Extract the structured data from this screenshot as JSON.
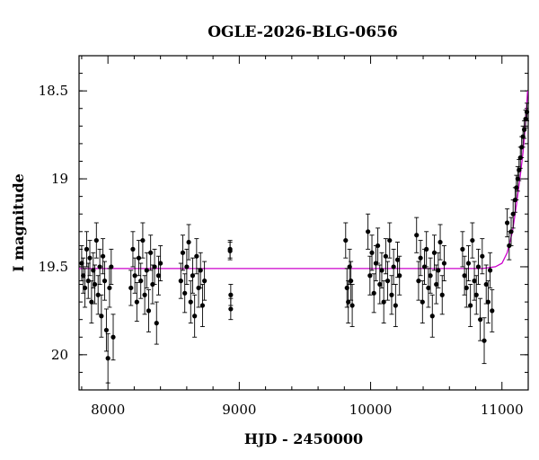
{
  "chart_data": {
    "type": "scatter",
    "title": "OGLE-2026-BLG-0656",
    "xlabel": "HJD - 2450000",
    "ylabel": "I magnitude",
    "xlim": [
      7780,
      11200
    ],
    "ylim": [
      20.2,
      18.3
    ],
    "y_inverted": true,
    "xticks": [
      8000,
      9000,
      10000,
      11000
    ],
    "yticks": [
      18.5,
      19,
      19.5,
      20
    ],
    "xtick_labels": [
      "8000",
      "9000",
      "10000",
      "11000"
    ],
    "ytick_labels": [
      "18.5",
      "19",
      "19.5",
      "20"
    ],
    "grid": false,
    "colors": {
      "points": "#000000",
      "model": "#cc00cc",
      "frame": "#000000"
    },
    "series": [
      {
        "kind": "observations_with_error_bars",
        "x": [
          7800,
          7812,
          7825,
          7838,
          7850,
          7862,
          7875,
          7888,
          7900,
          7912,
          7925,
          7938,
          7950,
          7962,
          7975,
          7988,
          8000,
          8012,
          8025,
          8040,
          8175,
          8190,
          8205,
          8220,
          8235,
          8250,
          8265,
          8280,
          8295,
          8310,
          8325,
          8340,
          8355,
          8370,
          8385,
          8400,
          8555,
          8570,
          8585,
          8600,
          8615,
          8630,
          8645,
          8660,
          8675,
          8690,
          8705,
          8720,
          8735,
          8930,
          8930,
          8935,
          8935,
          9810,
          9820,
          9830,
          9840,
          9850,
          9860,
          9980,
          9995,
          10010,
          10025,
          10040,
          10055,
          10070,
          10085,
          10100,
          10115,
          10130,
          10145,
          10160,
          10175,
          10190,
          10205,
          10220,
          10350,
          10365,
          10380,
          10395,
          10410,
          10425,
          10440,
          10455,
          10470,
          10485,
          10500,
          10515,
          10530,
          10545,
          10560,
          10700,
          10715,
          10730,
          10745,
          10760,
          10775,
          10790,
          10805,
          10820,
          10835,
          10850,
          10865,
          10880,
          10895,
          10910,
          10925,
          11040,
          11055,
          11070,
          11085,
          11100,
          11110,
          11120,
          11130,
          11140,
          11150,
          11160,
          11170,
          11180,
          11190
        ],
        "y": [
          19.48,
          19.55,
          19.62,
          19.4,
          19.58,
          19.45,
          19.7,
          19.52,
          19.6,
          19.35,
          19.66,
          19.5,
          19.78,
          19.44,
          19.58,
          19.86,
          20.02,
          19.62,
          19.5,
          19.9,
          19.62,
          19.4,
          19.55,
          19.7,
          19.45,
          19.58,
          19.35,
          19.66,
          19.52,
          19.75,
          19.42,
          19.6,
          19.5,
          19.82,
          19.55,
          19.48,
          19.58,
          19.42,
          19.65,
          19.5,
          19.36,
          19.7,
          19.55,
          19.78,
          19.44,
          19.62,
          19.52,
          19.72,
          19.58,
          19.4,
          19.41,
          19.66,
          19.74,
          19.35,
          19.62,
          19.7,
          19.5,
          19.58,
          19.72,
          19.3,
          19.55,
          19.42,
          19.65,
          19.48,
          19.38,
          19.6,
          19.52,
          19.7,
          19.44,
          19.58,
          19.35,
          19.66,
          19.5,
          19.72,
          19.46,
          19.55,
          19.32,
          19.58,
          19.45,
          19.7,
          19.5,
          19.4,
          19.62,
          19.55,
          19.78,
          19.42,
          19.6,
          19.52,
          19.36,
          19.66,
          19.48,
          19.4,
          19.55,
          19.62,
          19.48,
          19.72,
          19.35,
          19.58,
          19.66,
          19.5,
          19.8,
          19.44,
          19.92,
          19.6,
          19.7,
          19.52,
          19.75,
          19.25,
          19.38,
          19.3,
          19.2,
          19.12,
          19.05,
          19.0,
          18.95,
          18.88,
          18.82,
          18.76,
          18.72,
          18.66,
          18.62
        ],
        "yerr": [
          0.1,
          0.1,
          0.11,
          0.1,
          0.1,
          0.1,
          0.12,
          0.1,
          0.11,
          0.1,
          0.11,
          0.1,
          0.12,
          0.1,
          0.11,
          0.12,
          0.14,
          0.11,
          0.1,
          0.13,
          0.1,
          0.1,
          0.1,
          0.11,
          0.1,
          0.1,
          0.1,
          0.11,
          0.1,
          0.12,
          0.1,
          0.11,
          0.1,
          0.12,
          0.11,
          0.1,
          0.1,
          0.1,
          0.11,
          0.1,
          0.1,
          0.12,
          0.1,
          0.12,
          0.1,
          0.11,
          0.1,
          0.12,
          0.11,
          0.05,
          0.05,
          0.06,
          0.06,
          0.1,
          0.11,
          0.12,
          0.1,
          0.11,
          0.12,
          0.1,
          0.11,
          0.1,
          0.11,
          0.1,
          0.1,
          0.11,
          0.1,
          0.12,
          0.1,
          0.11,
          0.1,
          0.11,
          0.1,
          0.12,
          0.1,
          0.11,
          0.1,
          0.11,
          0.1,
          0.12,
          0.1,
          0.1,
          0.11,
          0.1,
          0.12,
          0.1,
          0.11,
          0.1,
          0.1,
          0.11,
          0.1,
          0.1,
          0.11,
          0.11,
          0.1,
          0.12,
          0.1,
          0.11,
          0.11,
          0.1,
          0.12,
          0.1,
          0.13,
          0.11,
          0.12,
          0.1,
          0.12,
          0.08,
          0.08,
          0.08,
          0.08,
          0.07,
          0.07,
          0.07,
          0.06,
          0.06,
          0.06,
          0.06,
          0.05,
          0.05,
          0.05
        ]
      },
      {
        "kind": "model_curve",
        "x": [
          7780,
          9000,
          10000,
          10700,
          10850,
          10950,
          11000,
          11040,
          11080,
          11110,
          11140,
          11160,
          11180,
          11195
        ],
        "y": [
          19.51,
          19.51,
          19.51,
          19.51,
          19.51,
          19.5,
          19.48,
          19.42,
          19.3,
          19.15,
          18.98,
          18.85,
          18.68,
          18.5
        ]
      }
    ]
  }
}
